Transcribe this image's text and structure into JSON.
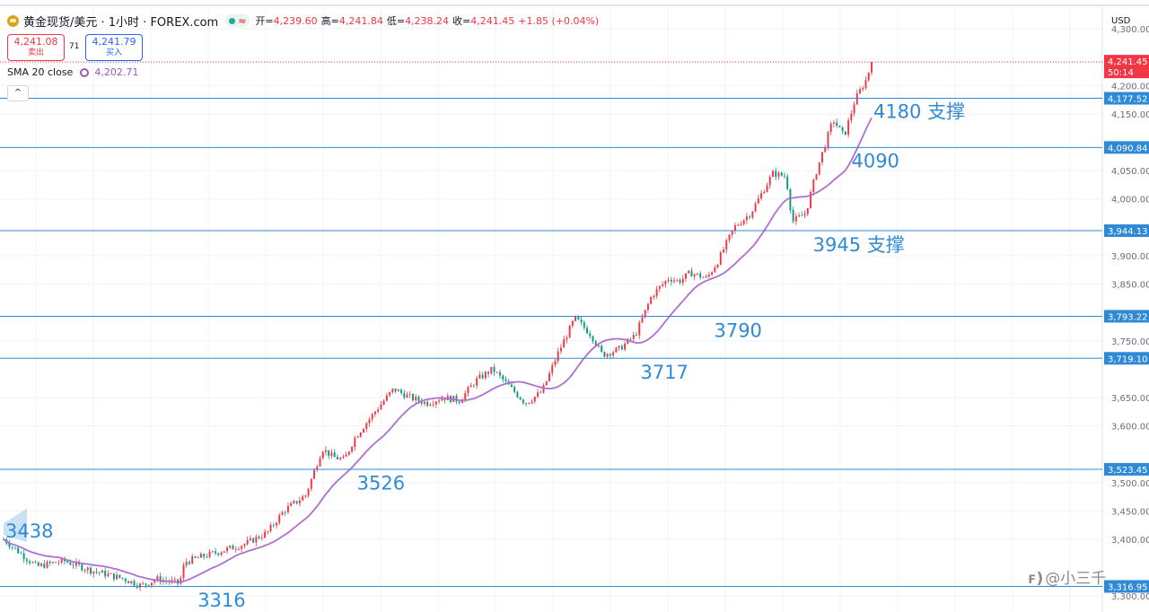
{
  "header": {
    "symbol": "黄金现货/美元 · 1小时 · FOREX.com",
    "approx_icon": "≈",
    "open_label": "开=",
    "open": "4,239.60",
    "high_label": "高=",
    "high": "4,241.84",
    "low_label": "低=",
    "low": "4,238.24",
    "close_label": "收=",
    "close": "4,241.45",
    "change": "+1.85 (+0.04%)",
    "sell_price": "4,241.08",
    "sell_label": "卖出",
    "spread": "71",
    "buy_price": "4,241.79",
    "buy_label": "买入",
    "sma_label": "SMA 20 close",
    "sma_value": "4,202.71",
    "collapse_icon": "^"
  },
  "watermark": "@小三千",
  "colors": {
    "up": "#f23645",
    "down": "#089981",
    "sma": "#b06fd0",
    "hline": "#2f8ad6",
    "annotation": "#2f8ad6",
    "price_badge": "#f23645"
  },
  "chart_data": {
    "type": "candlestick",
    "title": "黄金现货/美元 · 1小时 · FOREX.com",
    "currency": "USD",
    "ylim": [
      3275,
      4335
    ],
    "yticks": [
      {
        "label": "4,300.00",
        "value": 4300
      },
      {
        "label": "4,200.00",
        "value": 4200
      },
      {
        "label": "4,150.00",
        "value": 4150
      },
      {
        "label": "4,050.00",
        "value": 4050
      },
      {
        "label": "4,000.00",
        "value": 4000
      },
      {
        "label": "3,900.00",
        "value": 3900
      },
      {
        "label": "3,850.00",
        "value": 3850
      },
      {
        "label": "3,750.00",
        "value": 3750
      },
      {
        "label": "3,650.00",
        "value": 3650
      },
      {
        "label": "3,600.00",
        "value": 3600
      },
      {
        "label": "3,500.00",
        "value": 3500
      },
      {
        "label": "3,450.00",
        "value": 3450
      },
      {
        "label": "3,400.00",
        "value": 3400
      },
      {
        "label": "3,300.00",
        "value": 3300
      }
    ],
    "horizontal_levels": [
      {
        "value": 4177.52,
        "label": "4,177.52"
      },
      {
        "value": 4090.84,
        "label": "4,090.84"
      },
      {
        "value": 3944.13,
        "label": "3,944.13"
      },
      {
        "value": 3793.22,
        "label": "3,793.22"
      },
      {
        "value": 3719.1,
        "label": "3,719.10"
      },
      {
        "value": 3523.45,
        "label": "3,523.45"
      },
      {
        "value": 3316.95,
        "label": "3,316.95"
      }
    ],
    "last_price": {
      "value": 4241.45,
      "label": "4,241.45",
      "countdown": "50:14"
    },
    "annotations": [
      {
        "text": "4180 支撑",
        "x_frac": 0.79,
        "y": 4162
      },
      {
        "text": "4090",
        "x_frac": 0.77,
        "y": 4075
      },
      {
        "text": "3945 支撑",
        "x_frac": 0.735,
        "y": 3927
      },
      {
        "text": "3790",
        "x_frac": 0.645,
        "y": 3776
      },
      {
        "text": "3717",
        "x_frac": 0.578,
        "y": 3702
      },
      {
        "text": "3526",
        "x_frac": 0.32,
        "y": 3507
      },
      {
        "text": "3438",
        "x_frac": 0.0,
        "y": 3422
      },
      {
        "text": "3316",
        "x_frac": 0.175,
        "y": 3300
      }
    ],
    "price_path": [
      [
        0.0,
        3400
      ],
      [
        0.03,
        3352
      ],
      [
        0.055,
        3362
      ],
      [
        0.08,
        3345
      ],
      [
        0.11,
        3330
      ],
      [
        0.125,
        3318
      ],
      [
        0.14,
        3330
      ],
      [
        0.16,
        3322
      ],
      [
        0.165,
        3360
      ],
      [
        0.185,
        3372
      ],
      [
        0.22,
        3392
      ],
      [
        0.24,
        3412
      ],
      [
        0.255,
        3450
      ],
      [
        0.275,
        3478
      ],
      [
        0.29,
        3560
      ],
      [
        0.3,
        3545
      ],
      [
        0.31,
        3540
      ],
      [
        0.32,
        3580
      ],
      [
        0.34,
        3630
      ],
      [
        0.355,
        3665
      ],
      [
        0.37,
        3650
      ],
      [
        0.385,
        3640
      ],
      [
        0.4,
        3650
      ],
      [
        0.415,
        3645
      ],
      [
        0.43,
        3680
      ],
      [
        0.445,
        3700
      ],
      [
        0.46,
        3670
      ],
      [
        0.475,
        3640
      ],
      [
        0.49,
        3660
      ],
      [
        0.505,
        3730
      ],
      [
        0.52,
        3790
      ],
      [
        0.535,
        3760
      ],
      [
        0.545,
        3725
      ],
      [
        0.56,
        3735
      ],
      [
        0.575,
        3760
      ],
      [
        0.59,
        3830
      ],
      [
        0.605,
        3860
      ],
      [
        0.615,
        3855
      ],
      [
        0.625,
        3870
      ],
      [
        0.64,
        3860
      ],
      [
        0.65,
        3890
      ],
      [
        0.665,
        3950
      ],
      [
        0.68,
        3975
      ],
      [
        0.7,
        4045
      ],
      [
        0.712,
        4040
      ],
      [
        0.718,
        3960
      ],
      [
        0.73,
        3975
      ],
      [
        0.74,
        4050
      ],
      [
        0.755,
        4140
      ],
      [
        0.765,
        4110
      ],
      [
        0.775,
        4175
      ],
      [
        0.785,
        4210
      ],
      [
        0.79,
        4241
      ]
    ]
  }
}
